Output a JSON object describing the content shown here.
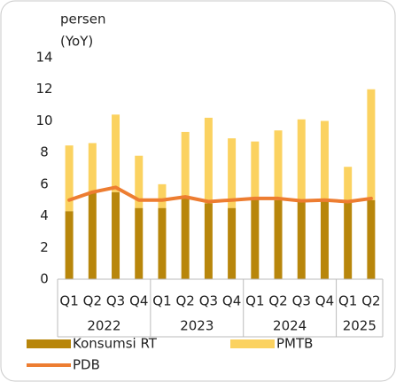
{
  "chart_data": {
    "type": "bar",
    "y_label_lines": [
      "persen",
      "(YoY)"
    ],
    "groups": [
      {
        "label": "2022",
        "categories": [
          "Q1",
          "Q2",
          "Q3",
          "Q4"
        ]
      },
      {
        "label": "2023",
        "categories": [
          "Q1",
          "Q2",
          "Q3",
          "Q4"
        ]
      },
      {
        "label": "2024",
        "categories": [
          "Q1",
          "Q2",
          "Q3",
          "Q4"
        ]
      },
      {
        "label": "2025",
        "categories": [
          "Q1",
          "Q2"
        ]
      }
    ],
    "series": [
      {
        "name": "Konsumsi RT",
        "color": "#b8860b",
        "stack": true,
        "values": [
          4.3,
          5.5,
          5.5,
          4.5,
          4.5,
          5.2,
          4.8,
          4.5,
          5.1,
          5.0,
          4.9,
          5.0,
          4.9,
          5.0
        ]
      },
      {
        "name": "PMTB",
        "color": "#fbd260",
        "stack": true,
        "values": [
          4.15,
          3.1,
          4.9,
          3.3,
          1.5,
          4.1,
          5.4,
          4.4,
          3.6,
          4.4,
          5.2,
          5.0,
          2.2,
          7.0
        ]
      },
      {
        "name": "PDB",
        "color": "#ed7d31",
        "line": true,
        "values": [
          5.0,
          5.5,
          5.8,
          5.0,
          5.0,
          5.2,
          4.9,
          5.0,
          5.1,
          5.1,
          4.95,
          5.0,
          4.9,
          5.1
        ]
      }
    ],
    "ylim": [
      0,
      14
    ],
    "yticks": [
      0,
      2,
      4,
      6,
      8,
      10,
      12,
      14
    ]
  }
}
